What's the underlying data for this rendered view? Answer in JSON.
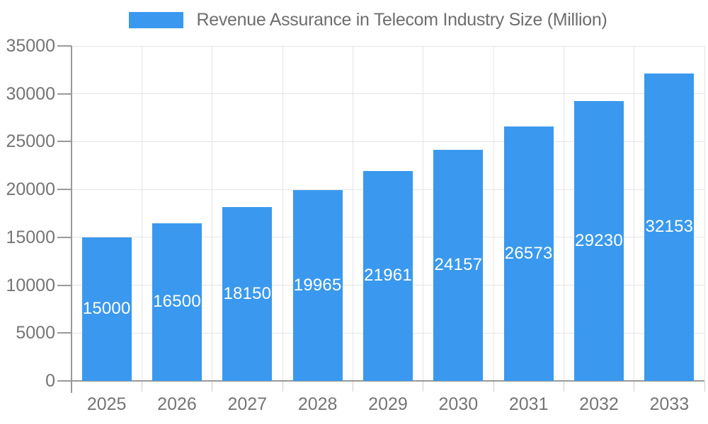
{
  "chart_data": {
    "type": "bar",
    "title": "Revenue Assurance in Telecom Industry Size (Million)",
    "legend": {
      "position": "top",
      "entries": [
        {
          "label": "Revenue Assurance in Telecom Industry Size (Million)",
          "swatch_color": "#3a99ee"
        }
      ]
    },
    "categories": [
      "2025",
      "2026",
      "2027",
      "2028",
      "2029",
      "2030",
      "2031",
      "2032",
      "2033"
    ],
    "series": [
      {
        "name": "Revenue Assurance in Telecom Industry Size (Million)",
        "values": [
          15000,
          16500,
          18150,
          19965,
          21961,
          24157,
          26573,
          29230,
          32153
        ]
      }
    ],
    "bar_value_labels": [
      "15000",
      "16500",
      "18150",
      "19965",
      "21961",
      "24157",
      "26573",
      "29230",
      "32153"
    ],
    "xlabel": "",
    "ylabel": "",
    "ylim": [
      0,
      35000
    ],
    "yticks": [
      0,
      5000,
      10000,
      15000,
      20000,
      25000,
      30000,
      35000
    ],
    "ytick_labels": [
      "0",
      "5000",
      "10000",
      "15000",
      "20000",
      "25000",
      "30000",
      "35000"
    ],
    "grid": true,
    "colors": {
      "bar": "#3a99ee",
      "bar_label_text": "#ffffff",
      "axis_line": "#999999",
      "grid_line": "#e5e5e5",
      "x_tick_mark": "#cccccc",
      "tick_label_text": "#757575",
      "legend_text": "#6e6e6e",
      "background": "#ffffff"
    }
  }
}
